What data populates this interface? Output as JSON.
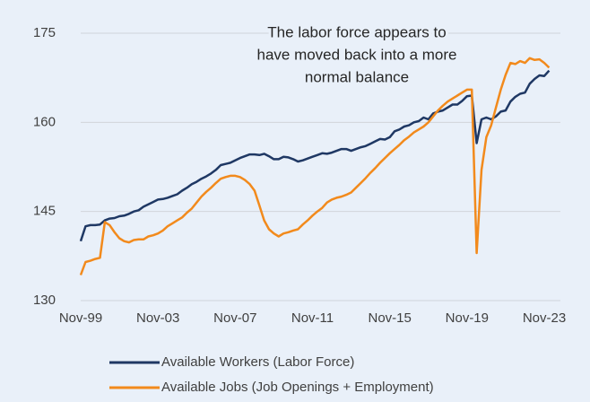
{
  "chart_data": {
    "type": "line",
    "annotation": [
      "The labor force appears to",
      "have moved back into a more",
      "normal balance"
    ],
    "categories": [
      "Nov-99",
      null,
      null,
      null,
      null,
      null,
      null,
      null,
      null,
      null,
      null,
      null,
      null,
      null,
      null,
      null,
      "Nov-03",
      null,
      null,
      null,
      null,
      null,
      null,
      null,
      null,
      null,
      null,
      null,
      null,
      null,
      null,
      null,
      "Nov-07",
      null,
      null,
      null,
      null,
      null,
      null,
      null,
      null,
      null,
      null,
      null,
      null,
      null,
      null,
      null,
      "Nov-11",
      null,
      null,
      null,
      null,
      null,
      null,
      null,
      null,
      null,
      null,
      null,
      null,
      null,
      null,
      null,
      "Nov-15",
      null,
      null,
      null,
      null,
      null,
      null,
      null,
      null,
      null,
      null,
      null,
      null,
      null,
      null,
      null,
      "Nov-19",
      null,
      null,
      null,
      null,
      null,
      null,
      null,
      null,
      null,
      null,
      null,
      null,
      null,
      null,
      null,
      "Nov-23",
      null
    ],
    "series": [
      {
        "name": "Available Workers (Labor Force)",
        "color": "#1f3864",
        "values": [
          140,
          142.5,
          142.7,
          142.7,
          142.8,
          143.5,
          143.8,
          143.9,
          144.2,
          144.3,
          144.6,
          145,
          145.2,
          145.8,
          146.2,
          146.6,
          147,
          147.1,
          147.3,
          147.6,
          147.9,
          148.5,
          149,
          149.6,
          150,
          150.5,
          150.9,
          151.4,
          152,
          152.8,
          153,
          153.2,
          153.6,
          154,
          154.3,
          154.6,
          154.6,
          154.5,
          154.7,
          154.3,
          153.8,
          153.8,
          154.2,
          154.1,
          153.8,
          153.4,
          153.6,
          153.9,
          154.2,
          154.5,
          154.8,
          154.7,
          154.9,
          155.2,
          155.5,
          155.5,
          155.2,
          155.5,
          155.8,
          156,
          156.4,
          156.8,
          157.2,
          157.1,
          157.5,
          158.5,
          158.8,
          159.3,
          159.5,
          160,
          160.2,
          160.8,
          160.5,
          161.5,
          161.8,
          162,
          162.5,
          163,
          163,
          163.6,
          164.4,
          164.5,
          156.5,
          160.5,
          160.8,
          160.5,
          161,
          161.8,
          162,
          163.5,
          164.3,
          164.8,
          165,
          166.5,
          167.3,
          167.9,
          167.8,
          168.7
        ]
      },
      {
        "name": "Available Jobs (Job Openings + Employment)",
        "color": "#f28a1c",
        "values": [
          134.3,
          136.5,
          136.7,
          137,
          137.2,
          143.2,
          142.7,
          141.5,
          140.5,
          140,
          139.8,
          140.2,
          140.3,
          140.3,
          140.8,
          141,
          141.3,
          141.8,
          142.5,
          143,
          143.5,
          144,
          144.8,
          145.5,
          146.5,
          147.5,
          148.3,
          149,
          149.8,
          150.5,
          150.8,
          151,
          151,
          150.8,
          150.3,
          149.6,
          148.5,
          146,
          143.5,
          142,
          141.3,
          140.8,
          141.3,
          141.5,
          141.8,
          142,
          142.8,
          143.5,
          144.3,
          145,
          145.6,
          146.5,
          147,
          147.3,
          147.5,
          147.8,
          148.2,
          149,
          149.8,
          150.6,
          151.5,
          152.3,
          153.2,
          154,
          154.8,
          155.5,
          156.2,
          157,
          157.6,
          158.3,
          158.8,
          159.3,
          160,
          161,
          162,
          162.8,
          163.5,
          164,
          164.5,
          165,
          165.5,
          165.5,
          138,
          152,
          157.5,
          159.5,
          162.5,
          165.5,
          168,
          170,
          169.8,
          170.3,
          170,
          170.8,
          170.5,
          170.6,
          170,
          169.2
        ]
      }
    ],
    "ylim": [
      130,
      175
    ],
    "yticks": [
      130,
      145,
      160,
      175
    ],
    "grid": true
  }
}
